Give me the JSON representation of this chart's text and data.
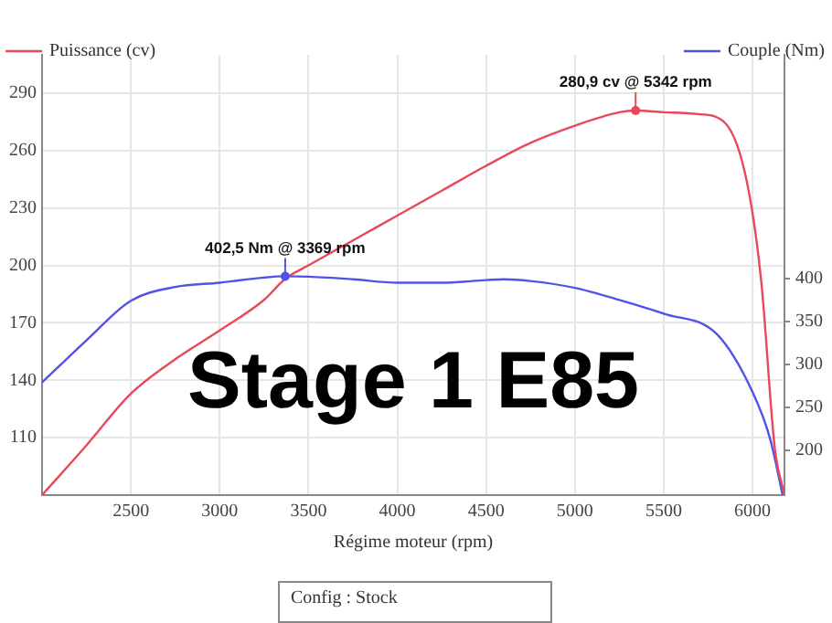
{
  "chart_data": {
    "type": "line",
    "xlabel": "Régime moteur (rpm)",
    "xlim": [
      2000,
      6180
    ],
    "xticks": [
      2500,
      3000,
      3500,
      4000,
      4500,
      5000,
      5500,
      6000
    ],
    "ylim": [
      80,
      310
    ],
    "yticks": [
      110,
      140,
      170,
      200,
      230,
      260,
      290
    ],
    "y2lim": [
      148,
      660
    ],
    "y2ticks": [
      200,
      250,
      300,
      350,
      400
    ],
    "grid": true,
    "legend": "top",
    "marker": "none",
    "line_style": "solid",
    "series": [
      {
        "name": "Puissance (cv)",
        "color": "#e8485a",
        "x": [
          2000,
          2250,
          2500,
          2750,
          3000,
          3250,
          3369,
          3500,
          3750,
          4000,
          4250,
          4500,
          4750,
          5000,
          5250,
          5342,
          5500,
          5700,
          5850,
          5970,
          6050,
          6125,
          6180
        ],
        "values": [
          80,
          106,
          133,
          151,
          166,
          182,
          193,
          200,
          213,
          226,
          239,
          252,
          264,
          273,
          280,
          280.9,
          280,
          279,
          274,
          243,
          191,
          105,
          80
        ],
        "value_labels": [
          null,
          null,
          null,
          null,
          null,
          null,
          null,
          null,
          null,
          null,
          null,
          null,
          null,
          null,
          null,
          "280,9 cv @ 5342 rpm",
          null,
          null,
          null,
          null,
          null,
          null,
          null
        ]
      },
      {
        "name": "Couple (Nm)",
        "color": "#5252e8",
        "axis": "y2",
        "x": [
          2000,
          2250,
          2500,
          2750,
          3000,
          3250,
          3369,
          3500,
          3750,
          4000,
          4250,
          4500,
          4600,
          4750,
          5000,
          5250,
          5500,
          5800,
          6000,
          6100,
          6170
        ],
        "values": [
          279,
          328,
          374,
          390,
          395,
          401,
          402.5,
          402,
          399,
          395,
          395,
          398,
          399,
          397,
          389,
          375,
          359,
          335,
          268,
          213,
          148
        ],
        "value_labels": [
          null,
          null,
          null,
          null,
          null,
          null,
          "402,5 Nm @ 3369 rpm",
          null,
          null,
          null,
          null,
          null,
          null,
          null,
          null,
          null,
          null,
          null,
          null,
          null,
          null
        ]
      }
    ],
    "annotations": [
      "Stage 1 E85",
      "Config : Stock"
    ]
  }
}
